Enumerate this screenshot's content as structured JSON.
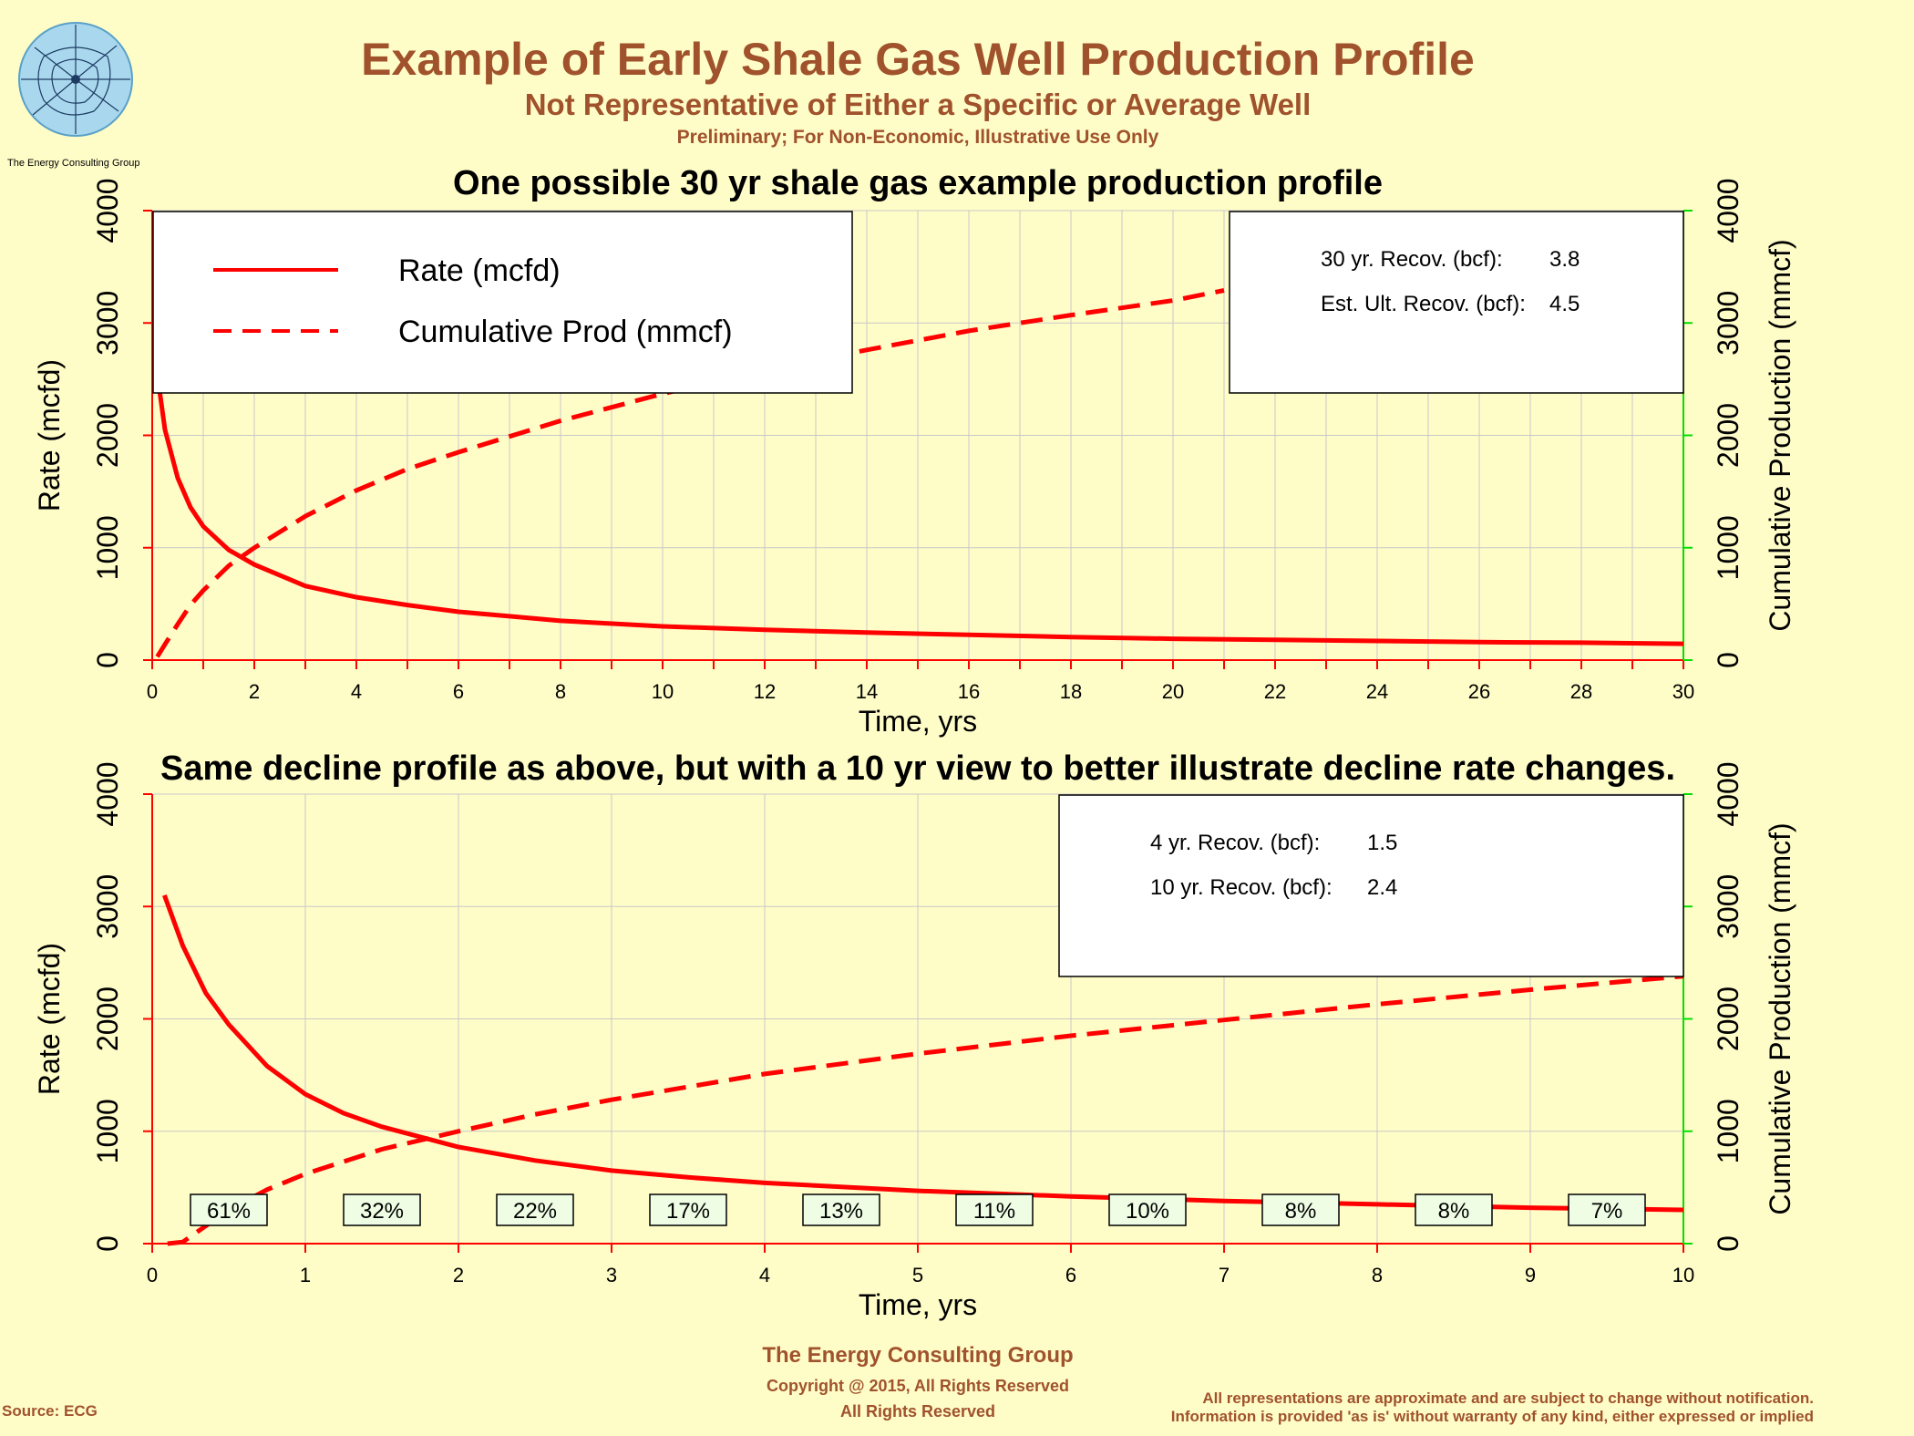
{
  "header": {
    "title": "Example of Early Shale Gas Well Production Profile",
    "subtitle": "Not Representative of Either a Specific or Average Well",
    "note": "Preliminary; For Non-Economic, Illustrative Use Only",
    "logo_text": "The Energy Consulting Group"
  },
  "footer": {
    "company": "The Energy Consulting Group",
    "copyright": "Copyright @ 2015, All Rights Reserved",
    "rights": "All Rights Reserved",
    "source": "Source: ECG",
    "disclaimer_1": "All representations are approximate and are subject to change without notification.",
    "disclaimer_2": "Information is provided 'as is' without warranty of any kind, either expressed or implied"
  },
  "colors": {
    "background": "#fffdc7",
    "brown": "#a0522d",
    "series": "#ff0000",
    "right_axis": "#00e000",
    "grid": "#c8c8c8",
    "label_box": "#eefde4"
  },
  "chart_data": [
    {
      "type": "line",
      "title": "One possible 30 yr shale gas example production profile",
      "xlabel": "Time, yrs",
      "ylabel": "Rate (mcfd)",
      "ylabel_right": "Cumulative Production (mmcf)",
      "xlim": [
        0,
        30
      ],
      "ylim": [
        0,
        4000
      ],
      "ylim_right": [
        0,
        4000
      ],
      "xticks": [
        "0",
        "2",
        "4",
        "6",
        "8",
        "10",
        "12",
        "14",
        "16",
        "18",
        "20",
        "22",
        "24",
        "26",
        "28",
        "30"
      ],
      "yticks": [
        "0",
        "1000",
        "2000",
        "3000",
        "4000"
      ],
      "grid": true,
      "legend": {
        "position": "top-left",
        "entries": [
          "Rate (mcfd)",
          "Cumulative Prod (mmcf)"
        ]
      },
      "info_box": [
        {
          "label": "30 yr. Recov. (bcf):",
          "value": "3.8"
        },
        {
          "label": "Est. Ult. Recov. (bcf):",
          "value": "4.5"
        }
      ],
      "series": [
        {
          "name": "Rate (mcfd)",
          "axis": "left",
          "style": "solid",
          "x": [
            0.1,
            0.25,
            0.5,
            0.75,
            1,
            1.5,
            2,
            3,
            4,
            5,
            6,
            7,
            8,
            10,
            12,
            14,
            16,
            18,
            20,
            22,
            24,
            26,
            28,
            30
          ],
          "y": [
            2540,
            2050,
            1620,
            1360,
            1190,
            980,
            850,
            660,
            560,
            490,
            430,
            390,
            350,
            300,
            270,
            245,
            225,
            205,
            190,
            180,
            170,
            160,
            155,
            145
          ]
        },
        {
          "name": "Cumulative Prod (mmcf)",
          "axis": "right",
          "style": "dashed",
          "x": [
            0.1,
            0.25,
            0.5,
            0.75,
            1,
            1.5,
            2,
            3,
            4,
            5,
            6,
            7,
            8,
            10,
            12,
            14,
            16,
            18,
            20,
            21
          ],
          "y": [
            30,
            140,
            320,
            490,
            620,
            840,
            1000,
            1280,
            1510,
            1700,
            1850,
            1990,
            2130,
            2370,
            2580,
            2760,
            2930,
            3070,
            3200,
            3290
          ]
        }
      ]
    },
    {
      "type": "line",
      "title": "Same decline profile as above, but with a 10 yr view to better illustrate decline rate changes.",
      "xlabel": "Time, yrs",
      "ylabel": "Rate (mcfd)",
      "ylabel_right": "Cumulative Production (mmcf)",
      "xlim": [
        0,
        10
      ],
      "ylim": [
        0,
        4000
      ],
      "ylim_right": [
        0,
        4000
      ],
      "xticks": [
        "0",
        "1",
        "2",
        "3",
        "4",
        "5",
        "6",
        "7",
        "8",
        "9",
        "10"
      ],
      "yticks": [
        "0",
        "1000",
        "2000",
        "3000",
        "4000"
      ],
      "grid": true,
      "info_box": [
        {
          "label": "4 yr. Recov. (bcf):",
          "value": "1.5"
        },
        {
          "label": "10 yr. Recov. (bcf):",
          "value": "2.4"
        }
      ],
      "annual_decline_labels": [
        "61%",
        "32%",
        "22%",
        "17%",
        "13%",
        "11%",
        "10%",
        "8%",
        "8%",
        "7%"
      ],
      "series": [
        {
          "name": "Rate (mcfd)",
          "axis": "left",
          "style": "solid",
          "x": [
            0.08,
            0.2,
            0.35,
            0.5,
            0.75,
            1,
            1.25,
            1.5,
            2,
            2.5,
            3,
            3.5,
            4,
            5,
            6,
            7,
            8,
            9,
            10
          ],
          "y": [
            3100,
            2650,
            2230,
            1950,
            1580,
            1330,
            1160,
            1040,
            860,
            740,
            650,
            590,
            540,
            470,
            420,
            380,
            350,
            320,
            300
          ]
        },
        {
          "name": "Cumulative Prod (mmcf)",
          "axis": "right",
          "style": "dashed",
          "x": [
            0.1,
            0.2,
            0.3,
            0.5,
            0.75,
            1,
            1.5,
            2,
            2.5,
            3,
            4,
            5,
            6,
            7,
            8,
            9,
            10
          ],
          "y": [
            0,
            15,
            110,
            300,
            480,
            620,
            840,
            1000,
            1150,
            1280,
            1510,
            1690,
            1850,
            1990,
            2130,
            2260,
            2380
          ]
        }
      ]
    }
  ]
}
